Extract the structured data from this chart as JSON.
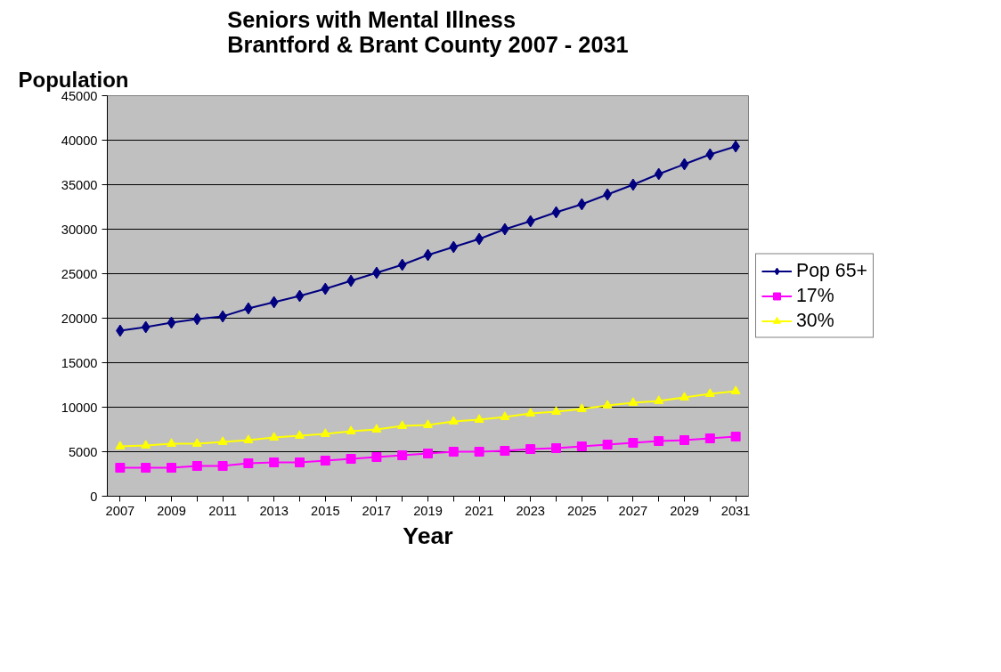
{
  "chart_data": {
    "type": "line",
    "title": "Seniors with Mental Illness\nBrantford & Brant County 2007 - 2031",
    "xlabel": "Year",
    "ylabel": "Population",
    "categories": [
      "2007",
      null,
      "2009",
      null,
      "2011",
      null,
      "2013",
      null,
      "2015",
      null,
      "2017",
      null,
      "2019",
      null,
      "2021",
      null,
      "2023",
      null,
      "2025",
      null,
      "2027",
      null,
      "2029",
      null,
      "2031"
    ],
    "series": [
      {
        "name": "Pop 65+",
        "color": "#000080",
        "marker": "diamond",
        "values": [
          18600,
          19000,
          19500,
          19900,
          20200,
          21100,
          21800,
          22500,
          23300,
          24200,
          25100,
          26000,
          27100,
          28000,
          28900,
          30000,
          30900,
          31900,
          32800,
          33900,
          35000,
          36200,
          37300,
          38400,
          39300
        ]
      },
      {
        "name": "17%",
        "color": "#ff00ff",
        "marker": "square",
        "values": [
          3200,
          3200,
          3200,
          3400,
          3400,
          3700,
          3800,
          3800,
          4000,
          4200,
          4400,
          4600,
          4800,
          5000,
          5000,
          5100,
          5300,
          5400,
          5600,
          5800,
          6000,
          6200,
          6300,
          6500,
          6700
        ]
      },
      {
        "name": "30%",
        "color": "#ffff00",
        "marker": "triangle",
        "values": [
          5600,
          5700,
          5900,
          5900,
          6100,
          6300,
          6600,
          6800,
          7000,
          7300,
          7500,
          7900,
          8000,
          8400,
          8600,
          8900,
          9300,
          9500,
          9800,
          10200,
          10500,
          10700,
          11100,
          11500,
          11800
        ]
      }
    ],
    "ylim": [
      0,
      45000
    ],
    "yticks": [
      0,
      5000,
      10000,
      15000,
      20000,
      25000,
      30000,
      35000,
      40000,
      45000
    ],
    "grid": "y",
    "legend": "right",
    "line_style": "solid"
  }
}
